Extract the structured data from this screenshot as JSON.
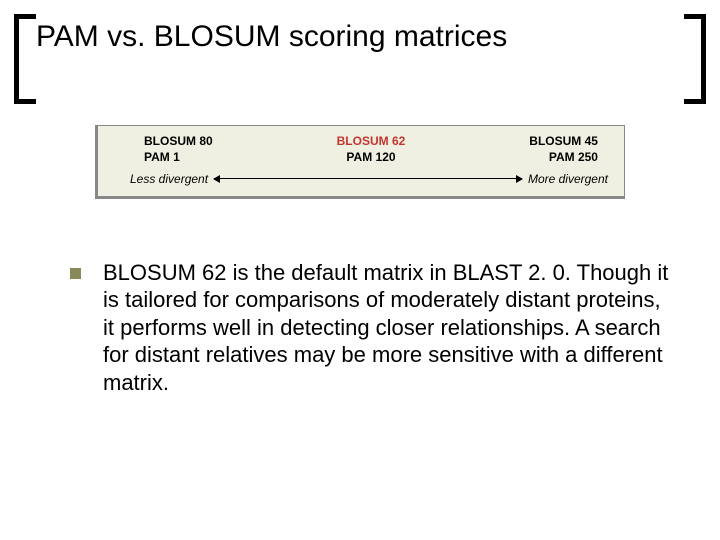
{
  "title": "PAM vs. BLOSUM scoring matrices",
  "diagram": {
    "background": "#f0f0e2",
    "columns": [
      {
        "blosum": "BLOSUM 80",
        "pam": "PAM 1",
        "highlight": false
      },
      {
        "blosum": "BLOSUM 62",
        "pam": "PAM 120",
        "highlight": true
      },
      {
        "blosum": "BLOSUM 45",
        "pam": "PAM 250",
        "highlight": false
      }
    ],
    "left_label": "Less divergent",
    "right_label": "More divergent",
    "highlight_color": "#c4342d"
  },
  "bullet_text": "BLOSUM 62 is the default matrix in BLAST 2. 0. Though it is tailored for comparisons of moderately distant proteins, it performs well in detecting closer relationships. A search for distant relatives may be more sensitive with a different matrix.",
  "bullet_color": "#888a5a"
}
